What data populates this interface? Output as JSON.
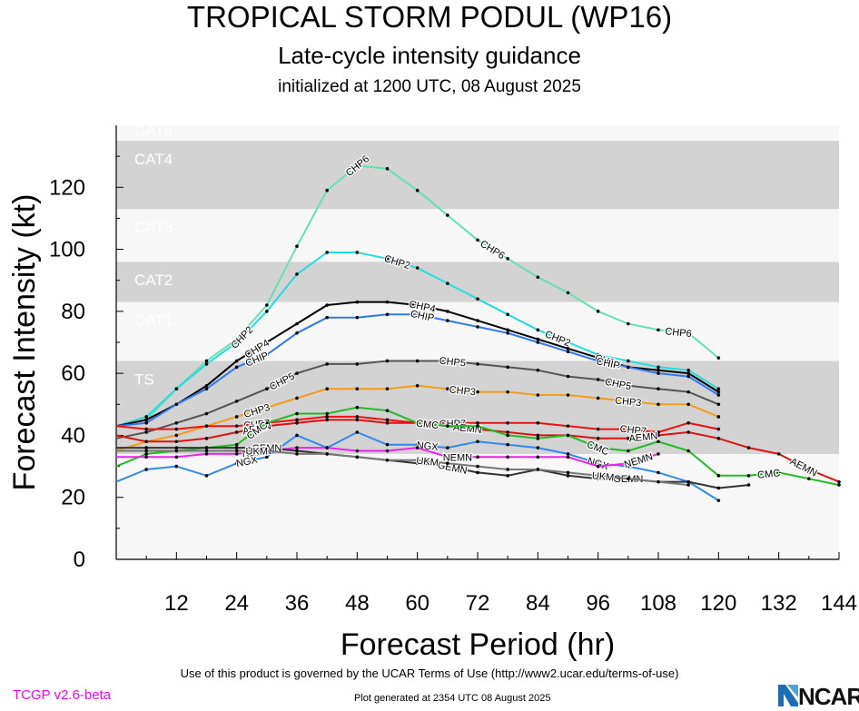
{
  "header": {
    "title": "TROPICAL STORM PODUL (WP16)",
    "subtitle": "Late-cycle intensity guidance",
    "initialized": "initialized at 1200 UTC, 08 August 2025"
  },
  "footer": {
    "terms": "Use of this product is governed by the UCAR Terms of Use (http://www2.ucar.edu/terms-of-use)",
    "version": "TCGP v2.6-beta",
    "generated": "Plot generated at 2354 UTC   08 August 2025",
    "logo_text": "NCAR"
  },
  "colors": {
    "band_dark": "#d3d3d3",
    "band_light": "#f7f7f7",
    "band_label": "#ffffff"
  },
  "chart_data": {
    "type": "line",
    "title": "TROPICAL STORM PODUL (WP16)",
    "xlabel": "Forecast Period (hr)",
    "ylabel": "Forecast Intensity (kt)",
    "xlim": [
      0,
      144
    ],
    "ylim": [
      0,
      140
    ],
    "xticks": [
      12,
      24,
      36,
      48,
      60,
      72,
      84,
      96,
      108,
      120,
      132,
      144
    ],
    "yticks": [
      0,
      20,
      40,
      60,
      80,
      100,
      120
    ],
    "category_bands": [
      {
        "label": "TS",
        "min": 34,
        "max": 64
      },
      {
        "label": "CAT1",
        "min": 64,
        "max": 83
      },
      {
        "label": "CAT2",
        "min": 83,
        "max": 96
      },
      {
        "label": "CAT3",
        "min": 96,
        "max": 113
      },
      {
        "label": "CAT4",
        "min": 113,
        "max": 135
      },
      {
        "label": "CAT5",
        "min": 135,
        "max": 140
      }
    ],
    "series": [
      {
        "name": "CHP6",
        "color": "#66e0b3",
        "label_x": [
          48,
          75,
          112
        ],
        "x": [
          0,
          6,
          12,
          18,
          24,
          30,
          36,
          42,
          48,
          54,
          60,
          66,
          72,
          78,
          84,
          90,
          96,
          102,
          108,
          114,
          120
        ],
        "y": [
          43,
          45,
          55,
          64,
          71,
          82,
          101,
          119,
          127,
          126,
          119,
          111,
          103,
          97,
          91,
          86,
          80,
          76,
          74,
          73,
          65
        ]
      },
      {
        "name": "CHP2",
        "color": "#22dddd",
        "label_x": [
          25,
          56,
          88
        ],
        "x": [
          0,
          6,
          12,
          18,
          24,
          30,
          36,
          42,
          48,
          54,
          60,
          66,
          72,
          78,
          84,
          90,
          96,
          102,
          108,
          114,
          120
        ],
        "y": [
          43,
          46,
          55,
          63,
          70,
          80,
          92,
          99,
          99,
          97,
          94,
          89,
          84,
          79,
          74,
          70,
          66,
          64,
          62,
          61,
          55
        ]
      },
      {
        "name": "CHP4",
        "color": "#000000",
        "label_x": [
          28,
          61,
          98
        ],
        "x": [
          0,
          6,
          12,
          18,
          24,
          30,
          36,
          42,
          48,
          54,
          60,
          66,
          72,
          78,
          84,
          90,
          96,
          102,
          108,
          114,
          120
        ],
        "y": [
          43,
          45,
          50,
          56,
          64,
          70,
          76,
          82,
          83,
          83,
          82,
          80,
          77,
          74,
          71,
          68,
          65,
          62,
          61,
          60,
          54
        ]
      },
      {
        "name": "CHIP",
        "color": "#3377ee",
        "label_x": [
          28,
          61,
          98
        ],
        "x": [
          0,
          6,
          12,
          18,
          24,
          30,
          36,
          42,
          48,
          54,
          60,
          66,
          72,
          78,
          84,
          90,
          96,
          102,
          108,
          114,
          120
        ],
        "y": [
          43,
          44,
          50,
          55,
          62,
          66,
          73,
          78,
          78,
          79,
          79,
          77,
          75,
          73,
          70,
          67,
          64,
          62,
          60,
          59,
          53
        ]
      },
      {
        "name": "CHP5",
        "color": "#555555",
        "label_x": [
          33,
          67,
          100
        ],
        "x": [
          0,
          6,
          12,
          18,
          24,
          30,
          36,
          42,
          48,
          54,
          60,
          66,
          72,
          78,
          84,
          90,
          96,
          102,
          108,
          114,
          120
        ],
        "y": [
          39,
          41,
          44,
          47,
          51,
          55,
          60,
          63,
          63,
          64,
          64,
          64,
          63,
          62,
          61,
          59,
          58,
          56,
          55,
          54,
          50
        ]
      },
      {
        "name": "CHP3",
        "color": "#f39c1a",
        "label_x": [
          28,
          69,
          102
        ],
        "x": [
          0,
          6,
          12,
          18,
          24,
          30,
          36,
          42,
          48,
          54,
          60,
          66,
          72,
          78,
          84,
          90,
          96,
          102,
          108,
          114,
          120
        ],
        "y": [
          35,
          38,
          40,
          43,
          46,
          49,
          52,
          55,
          55,
          55,
          56,
          55,
          54,
          54,
          53,
          53,
          52,
          51,
          50,
          50,
          46
        ]
      },
      {
        "name": "CHP7",
        "color": "#ee1111",
        "label_x": [
          28,
          67,
          103
        ],
        "x": [
          0,
          6,
          12,
          18,
          24,
          30,
          36,
          42,
          48,
          54,
          60,
          66,
          72,
          78,
          84,
          90,
          96,
          102,
          108,
          114,
          120
        ],
        "y": [
          43,
          42,
          42,
          43,
          43,
          44,
          45,
          46,
          46,
          45,
          44,
          44,
          44,
          44,
          44,
          43,
          42,
          42,
          41,
          44,
          42
        ]
      },
      {
        "name": "AEMN",
        "color": "#dd1111",
        "label_x": [
          28,
          70,
          105,
          137
        ],
        "x": [
          0,
          6,
          12,
          18,
          24,
          30,
          36,
          42,
          48,
          54,
          60,
          66,
          72,
          78,
          84,
          90,
          96,
          102,
          108,
          114,
          120,
          126,
          132,
          138,
          144
        ],
        "y": [
          40,
          38,
          38,
          39,
          41,
          43,
          44,
          45,
          45,
          44,
          44,
          43,
          42,
          41,
          40,
          40,
          39,
          39,
          40,
          41,
          39,
          36,
          34,
          29,
          25
        ]
      },
      {
        "name": "CMC",
        "color": "#22bb22",
        "label_x": [
          28,
          62,
          96,
          130
        ],
        "x": [
          0,
          6,
          12,
          18,
          24,
          30,
          36,
          42,
          48,
          54,
          60,
          66,
          72,
          78,
          84,
          90,
          96,
          102,
          108,
          114,
          120,
          126,
          132,
          138,
          144
        ],
        "y": [
          30,
          34,
          35,
          36,
          37,
          44,
          47,
          47,
          49,
          48,
          44,
          43,
          43,
          40,
          39,
          40,
          36,
          35,
          38,
          35,
          27,
          27,
          28,
          26,
          24
        ]
      },
      {
        "name": "NGX",
        "color": "#3388ee",
        "label_x": [
          26,
          62,
          96
        ],
        "x": [
          0,
          6,
          12,
          18,
          24,
          30,
          36,
          42,
          48,
          54,
          60,
          66,
          72,
          78,
          84,
          90,
          96,
          102,
          108,
          114,
          120
        ],
        "y": [
          25,
          29,
          30,
          27,
          31,
          33,
          40,
          36,
          41,
          37,
          37,
          36,
          38,
          37,
          36,
          34,
          31,
          30,
          28,
          25,
          19
        ]
      },
      {
        "name": "NEMN",
        "color": "#ee22ee",
        "label_x": [
          28,
          68,
          104
        ],
        "x": [
          0,
          6,
          12,
          18,
          24,
          30,
          36,
          42,
          48,
          54,
          60,
          66,
          72,
          78,
          84,
          90,
          96,
          102,
          108
        ],
        "y": [
          33,
          33,
          33,
          34,
          34,
          35,
          36,
          36,
          35,
          35,
          36,
          33,
          33,
          33,
          33,
          33,
          30,
          31,
          34
        ]
      },
      {
        "name": "GEMN",
        "color": "#333333",
        "label_x": [
          30,
          67,
          102
        ],
        "x": [
          0,
          6,
          12,
          18,
          24,
          30,
          36,
          42,
          48,
          54,
          60,
          66,
          72,
          78,
          84,
          90,
          96,
          102,
          108,
          114,
          120,
          126
        ],
        "y": [
          36,
          36,
          36,
          36,
          36,
          36,
          35,
          34,
          33,
          32,
          31,
          30,
          28,
          27,
          29,
          27,
          26,
          26,
          25,
          25,
          23,
          24
        ]
      },
      {
        "name": "UKM",
        "color": "#777777",
        "label_x": [
          28,
          62,
          97
        ],
        "x": [
          0,
          6,
          12,
          18,
          24,
          30,
          36,
          42,
          48,
          54,
          60,
          66,
          72,
          78,
          84,
          90,
          96,
          102,
          108,
          114
        ],
        "y": [
          35,
          35,
          35,
          35,
          35,
          35,
          34,
          34,
          33,
          32,
          32,
          31,
          30,
          29,
          29,
          28,
          27,
          26,
          25,
          24
        ]
      }
    ]
  }
}
